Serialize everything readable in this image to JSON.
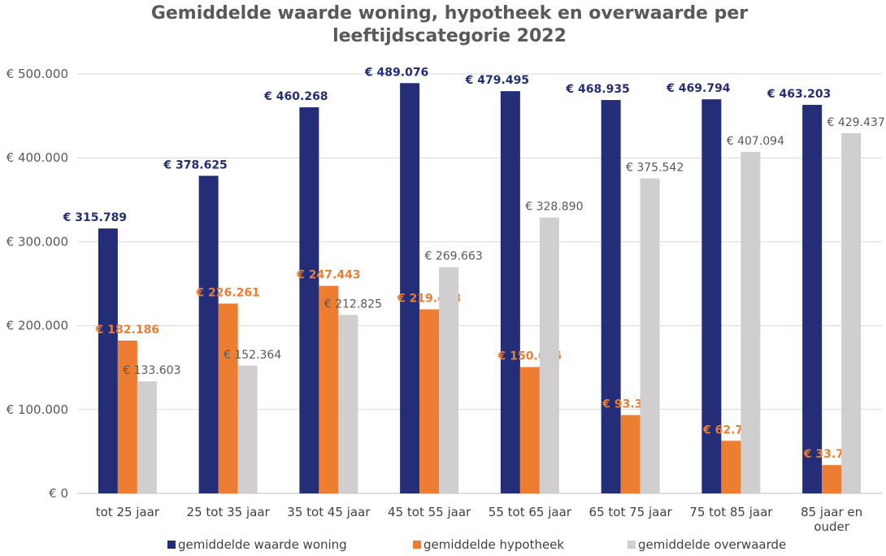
{
  "chart_data": {
    "type": "bar",
    "title_lines": [
      "Gemiddelde waarde woning, hypotheek en overwaarde per",
      "leeftijdscategorie 2022"
    ],
    "categories": [
      [
        "tot 25 jaar"
      ],
      [
        "25 tot 35 jaar"
      ],
      [
        "35 tot 45 jaar"
      ],
      [
        "45 tot 55 jaar"
      ],
      [
        "55 tot 65 jaar"
      ],
      [
        "65 tot 75 jaar"
      ],
      [
        "75 tot 85 jaar"
      ],
      [
        "85 jaar en",
        "ouder"
      ]
    ],
    "series": [
      {
        "name": "gemiddelde waarde woning",
        "color": "#232D78",
        "label_color": "#232D78",
        "values": [
          315789,
          378625,
          460268,
          489076,
          479495,
          468935,
          469794,
          463203
        ],
        "labels": [
          "€ 315.789",
          "€ 378.625",
          "€ 460.268",
          "€ 489.076",
          "€ 479.495",
          "€ 468.935",
          "€ 469.794",
          "€ 463.203"
        ]
      },
      {
        "name": "gemiddelde hypotheek",
        "color": "#ED7D31",
        "label_color": "#ED7D31",
        "values": [
          182186,
          226261,
          247443,
          219413,
          150605,
          93393,
          62700,
          33766
        ],
        "labels": [
          "€ 182.186",
          "€ 226.261",
          "€ 247.443",
          "€ 219.413",
          "€ 150.605",
          "€ 93.393",
          "€ 62.700",
          "€ 33.766"
        ]
      },
      {
        "name": "gemiddelde overwaarde",
        "color": "#D0CECE",
        "label_color": "#595959",
        "values": [
          133603,
          152364,
          212825,
          269663,
          328890,
          375542,
          407094,
          429437
        ],
        "labels": [
          "€ 133.603",
          "€ 152.364",
          "€ 212.825",
          "€ 269.663",
          "€ 328.890",
          "€ 375.542",
          "€ 407.094",
          "€ 429.437"
        ]
      }
    ],
    "y_ticks": [
      {
        "value": 0,
        "label": "€ 0"
      },
      {
        "value": 100000,
        "label": "€ 100.000"
      },
      {
        "value": 200000,
        "label": "€ 200.000"
      },
      {
        "value": 300000,
        "label": "€ 300.000"
      },
      {
        "value": 400000,
        "label": "€ 400.000"
      },
      {
        "value": 500000,
        "label": "€ 500.000"
      }
    ],
    "ylim": [
      0,
      500000
    ],
    "grid": true,
    "legend_position": "bottom"
  }
}
